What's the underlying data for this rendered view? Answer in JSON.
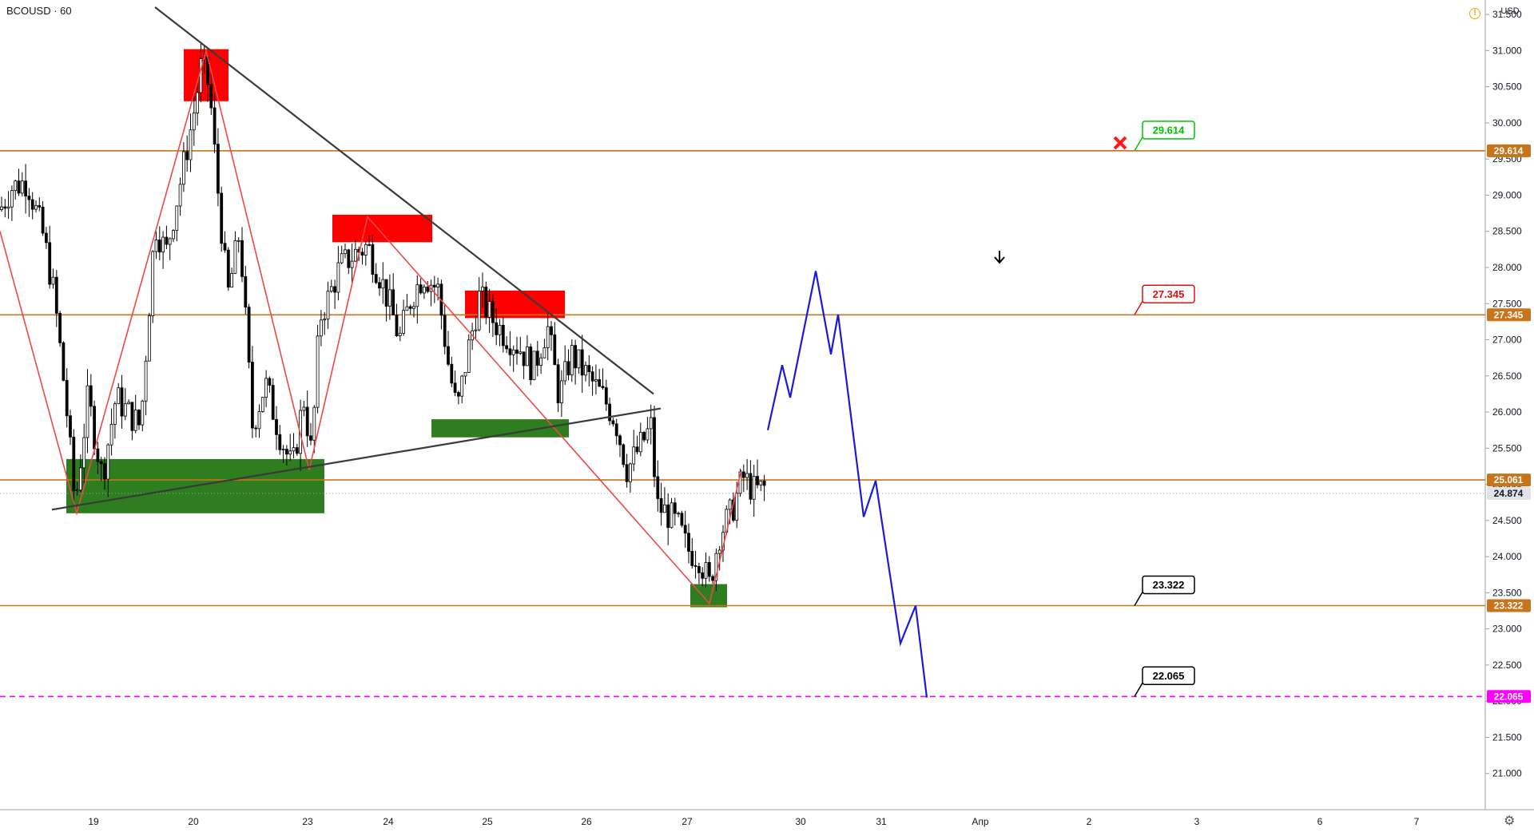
{
  "header": {
    "symbol": "BCOUSD · 60",
    "currency": "USD"
  },
  "colors": {
    "level_line": "#c8741a",
    "support_zone": "#2e7d1e",
    "resistance_zone": "#ff0000",
    "zigzag": "#f04848",
    "trend_line": "#3a3a3a",
    "projection": "#1a1ad8",
    "target_line": "#ff00ff",
    "candle": "#000000"
  },
  "chart_data": {
    "type": "candlestick",
    "ylim": [
      20.5,
      31.7
    ],
    "y_ticks": [
      "21.000",
      "21.500",
      "22.000",
      "22.500",
      "23.000",
      "23.500",
      "24.000",
      "24.500",
      "25.000",
      "25.500",
      "26.000",
      "26.500",
      "27.000",
      "27.500",
      "28.000",
      "28.500",
      "29.000",
      "29.500",
      "30.000",
      "30.500",
      "31.000",
      "31.500"
    ],
    "x_ticks": [
      "19",
      "20",
      "23",
      "24",
      "25",
      "26",
      "27",
      "30",
      "31",
      "Апр",
      "2",
      "3",
      "6",
      "7"
    ],
    "last_price": "24.874",
    "levels": [
      {
        "label": "29.614",
        "value": 29.614
      },
      {
        "label": "27.345",
        "value": 27.345
      },
      {
        "label": "25.061",
        "value": 25.061
      },
      {
        "label": "23.322",
        "value": 23.322
      }
    ],
    "target_level": {
      "label": "22.065",
      "value": 22.065
    },
    "callouts": [
      {
        "label": "29.614",
        "value": 29.614,
        "style": "green"
      },
      {
        "label": "27.345",
        "value": 27.345,
        "style": "red"
      },
      {
        "label": "23.322",
        "value": 23.322,
        "style": "black"
      },
      {
        "label": "22.065",
        "value": 22.065,
        "style": "black"
      }
    ],
    "zigzag": [
      [
        0,
        28.5
      ],
      [
        96,
        24.6
      ],
      [
        258,
        31.0
      ],
      [
        387,
        25.2
      ],
      [
        460,
        28.7
      ],
      [
        888,
        23.35
      ],
      [
        928,
        25.2
      ]
    ],
    "projection": [
      [
        961,
        25.75
      ],
      [
        979,
        26.65
      ],
      [
        989,
        26.2
      ],
      [
        1021,
        27.95
      ],
      [
        1040,
        26.8
      ],
      [
        1049,
        27.35
      ],
      [
        1081,
        24.55
      ],
      [
        1096,
        25.05
      ],
      [
        1127,
        22.8
      ],
      [
        1146,
        23.32
      ],
      [
        1160,
        22.05
      ]
    ],
    "trend_lines": [
      {
        "from": [
          194,
          31.6
        ],
        "to": [
          818,
          26.25
        ]
      },
      {
        "from": [
          65,
          24.65
        ],
        "to": [
          827,
          26.05
        ]
      }
    ],
    "zones": [
      {
        "kind": "support",
        "x": [
          83,
          406
        ],
        "y": [
          24.6,
          25.35
        ]
      },
      {
        "kind": "support",
        "x": [
          540,
          712
        ],
        "y": [
          25.65,
          25.9
        ]
      },
      {
        "kind": "support",
        "x": [
          864,
          910
        ],
        "y": [
          23.3,
          23.62
        ]
      },
      {
        "kind": "resistance",
        "x": [
          230,
          286
        ],
        "y": [
          30.3,
          31.02
        ]
      },
      {
        "kind": "resistance",
        "x": [
          416,
          541
        ],
        "y": [
          28.35,
          28.73
        ]
      },
      {
        "kind": "resistance",
        "x": [
          582,
          707
        ],
        "y": [
          27.3,
          27.68
        ]
      }
    ],
    "anchors": [
      [
        0,
        28.8
      ],
      [
        14,
        29.1
      ],
      [
        34,
        29.2
      ],
      [
        55,
        28.4
      ],
      [
        68,
        27.6
      ],
      [
        82,
        26.2
      ],
      [
        94,
        24.7
      ],
      [
        110,
        26.2
      ],
      [
        128,
        25.1
      ],
      [
        145,
        26.2
      ],
      [
        160,
        26.0
      ],
      [
        176,
        25.8
      ],
      [
        194,
        28.6
      ],
      [
        208,
        28.2
      ],
      [
        226,
        29.2
      ],
      [
        242,
        30.1
      ],
      [
        252,
        30.8
      ],
      [
        262,
        30.5
      ],
      [
        270,
        29.4
      ],
      [
        285,
        27.6
      ],
      [
        300,
        28.5
      ],
      [
        316,
        25.8
      ],
      [
        332,
        26.4
      ],
      [
        350,
        25.7
      ],
      [
        366,
        25.2
      ],
      [
        380,
        26.2
      ],
      [
        390,
        25.4
      ],
      [
        400,
        27.3
      ],
      [
        412,
        27.6
      ],
      [
        425,
        28.0
      ],
      [
        445,
        28.2
      ],
      [
        460,
        28.3
      ],
      [
        475,
        27.9
      ],
      [
        490,
        27.4
      ],
      [
        500,
        27.0
      ],
      [
        515,
        27.6
      ],
      [
        530,
        27.9
      ],
      [
        548,
        27.7
      ],
      [
        562,
        26.6
      ],
      [
        572,
        26.0
      ],
      [
        585,
        26.8
      ],
      [
        600,
        27.6
      ],
      [
        615,
        27.3
      ],
      [
        630,
        27.1
      ],
      [
        650,
        26.9
      ],
      [
        668,
        26.6
      ],
      [
        685,
        27.2
      ],
      [
        700,
        26.2
      ],
      [
        715,
        26.8
      ],
      [
        735,
        26.5
      ],
      [
        755,
        26.2
      ],
      [
        770,
        25.9
      ],
      [
        785,
        25.2
      ],
      [
        800,
        25.5
      ],
      [
        815,
        25.8
      ],
      [
        822,
        24.7
      ],
      [
        835,
        24.6
      ],
      [
        850,
        24.4
      ],
      [
        860,
        24.1
      ],
      [
        875,
        24.0
      ],
      [
        888,
        23.6
      ],
      [
        900,
        24.3
      ],
      [
        915,
        24.6
      ],
      [
        930,
        25.1
      ],
      [
        945,
        24.9
      ],
      [
        957,
        24.95
      ]
    ],
    "candle_seed": 7,
    "candle_spacing": 4.3
  }
}
